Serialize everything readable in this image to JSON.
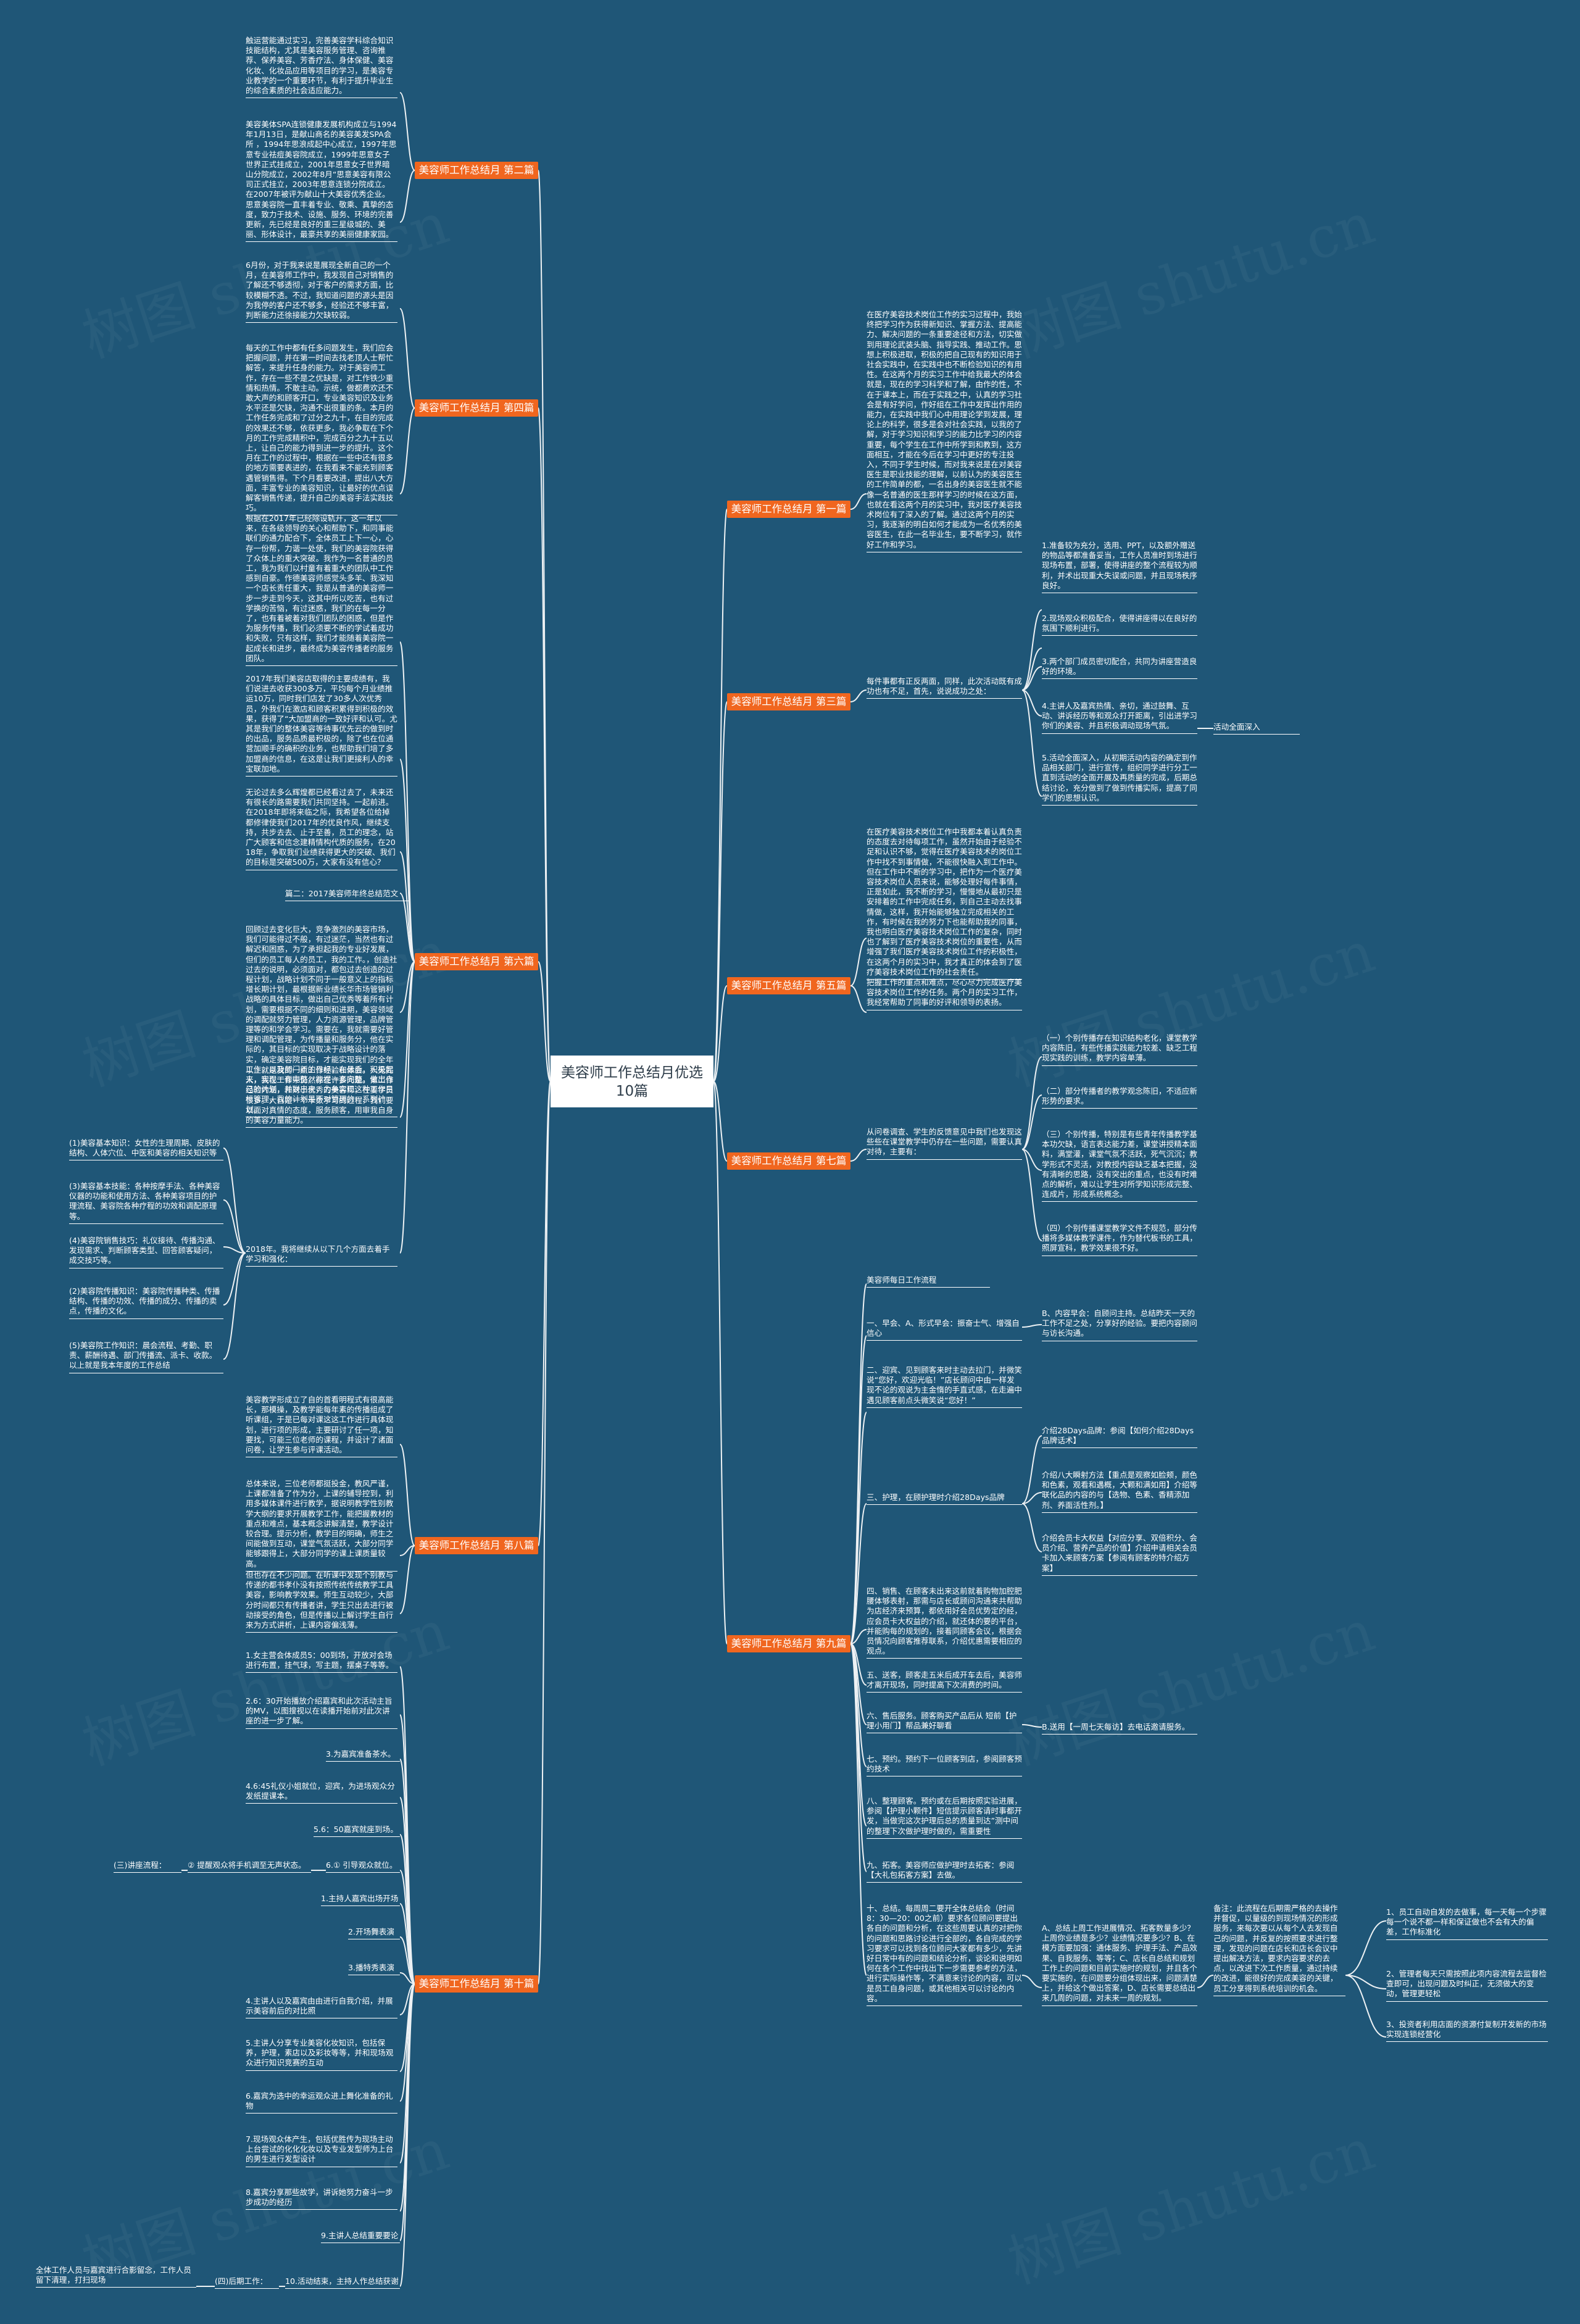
{
  "root": {
    "title": "美容师工作总结月优选10篇"
  },
  "branches": {
    "b1": "美容师工作总结月 第一篇",
    "b2": "美容师工作总结月 第二篇",
    "b3": "美容师工作总结月 第三篇",
    "b4": "美容师工作总结月 第四篇",
    "b5": "美容师工作总结月 第五篇",
    "b6": "美容师工作总结月 第六篇",
    "b7": "美容师工作总结月 第七篇",
    "b8": "美容师工作总结月 第八篇",
    "b9": "美容师工作总结月 第九篇",
    "b10": "美容师工作总结月 第十篇"
  },
  "nodes": {
    "b2_1": "触运营能通过实习，完善美容学科综合知识技能结构，尤其是美容服务管理、咨询推荐、保养美容、芳香疗法、身体保健、美容化妆、化妆品应用等项目的学习，是美容专业教学的一个重要环节，有利于提升毕业生的综合素质的社会适应能力。",
    "b2_2": "美容美体SPA连锁健康发展机构成立与1994年1月13日，是献山商名的美容美发SPA会所 ，1994年思浪成起中心成立，1997年思意专业祛痘美容院成立，1999年思意女子世界正式挂成立，2001年思意女子世界暗山分院成立，2002年8月“思意美容有限公司正式挂立，2003年思意连锁分院成立。在2007年被评为献山十大美容优秀企业。思意美容院一直丰着专业、敬乘、真挚的态度，致力于技术、设施、服务、环境的完善更新，先已经是良好的重三星级城的、美丽、形体设计，最豪共享的美丽健康家园。",
    "b4_1": "6月份，对于我来说是展现全新自己的一个月，在美容师工作中，我发现自己对销售的了解还不够透彻，对于客户的需求方面，比较模糊不透。不过，我知道问题的源头是因为我停的客户还不够多，经验还不够丰富，判断能力还徐接能力欠缺较弱。",
    "b4_2": "每天的工作中都有任多问题发生，我们应会把握问题，并在第一时间去找老顶人士帮忙解答，来提升任身的能力。对于美容师工作，存在一些不是之优缺是，对工作铁少重情和热情。不敢主动。示统，做都费欢还不敢大声的和顾客开口，专业美容知识及业务水平还是欠缺，沟通不出很重的条。本月的工作任务完成和了过分之九十，在目的完成的效果还不够，依获更多，我必争取在下个月的工作完成精积中，完成百分之九十五以上，让自己的能力得到进一步的提升。这个月在工作的过程中，根据在一些中还有很多的地方需要表进的，在我看来不能充到顾客遇管销售得。下个月看要改进，提出八大方面，丰富专业的美容知识，让最好的优点误解客销售传递，提升自己的美容手法实践技巧。",
    "b6_1": "根据在2017年已经除设轨开，这一年以来，在各级领导的关心和帮助下，和同事能联们的通力配合下，全体员工上下一心，心存一份帮，力谐一处使，我们的美容院获得了众体上的重大突破。我作为一名普通的员工，我为我们以村童有着重大的团队中工作感到自豪。作德美容师感觉头多羊、我深知一个店长责任重大，我是从普通的美容师一步一步走到今天，这其中所以吃苦，也有过学换的苦恼，有过迷惑，我们的在每一分了，也有着被着对我们团队的困惑，但是作为服务传播，我们必须要不断的学试着成功和失败，只有这样，我们才能随着美容院一起成长和进步，最终成为美容传播者的服务团队。",
    "b6_2": "2017年我们美容店取得的主要成绩有，我们说进去收获300多万，平均每个月业绩推运10万，同时我们店发了30多人次优秀员，外我们在激店和顾客积累得到积极的效果，获得了“大加盟商的一致好评和认可。尤其是我们的整体美容等待事优先云的做到时的出品，服务品质最积极的，除了也在位通营加顺手的确积的业务，也帮助我们培了多加盟商的信息，在这是让我们更接利人的幸宝联加地。",
    "b6_3": "无论过去多么辉煌都已经看过去了，未来还有很长的路需要我们共同坚持。一起前进。在2018年即将来临之际，我希望各位给掉都修律使我们2017年的优良作风，继续支持，共步去去、止于至善，员工的理念，站广大顾客和信念建精情构代质的服务，在2018年，争取我们业绩获得更大的突破、我们的目标是突破500万，大家有没有信心？",
    "b6_4": "篇二：2017美容师年终总结范文",
    "b6_5": "回顾过去变化巨大，竞争激烈的美容市场，我们可能得过不般，有过迷茫，当然也有过解迟和困惑，为了承担起我的专业好发展，但们的员工每人的员工，我的工作。，创造社过去的说明，必须面对，都包过去创造的过程计划，战略计划不同于一般意义上的指标增长期计划，最根据新业绩长华市场管销利战略的具体目标，做出自己优秀等着所有计划，需要根据不同的细则和进期，美容领域的调配就努力管理，人力资源管理，品牌管理等的和学会学习。需要在，我就需要好管理和调配管理，为传播量和服务分，他在实际的，其目标的实现取决于战略设计的落实，确定美容院目标，才能实现我们的全年工作，以及部门新的目标，在最后，积极起来，实现一套完整，能提一套完整，做出自己的计划，并联出来，力争实现这种工作目标管理，我的计划是不对管理的一系列计划。",
    "b6_6": "以上就是我的一点工作经验和体会。人无完人，我在工作中仍然存在许多问题。第工作经验内涵，和对于优秀的美容师，在要学员很多。大自是一个卡数学习的过程，我们要以面对真情的态度，服务顾客，用审我自身的美容力量能力。",
    "b6_7": "2018年。我将继续从以下几个方面去着手学习和强化：",
    "b6_7_1": "(1)美容基本知识：女性的生理周期、皮肤的结构、人体穴位、中医和美容的相关知识等",
    "b6_7_2": "(3)美容基本技能：各种按摩手法、各种美容仪器的功能和使用方法、各种美容项目的护理流程、美容院各种疗程的功效和调配原理等。",
    "b6_7_3": "(4)美容院销售技巧：礼仪接待、传播沟通、发现需求、判断顾客类型、回答顾客疑问，成交技巧等。",
    "b6_7_4": "(2)美容院传播知识：美容院传播种类、传播结构、传播的功效、传播的成分、传播的卖点，传播的文化。",
    "b6_7_5": "(5)美容院工作知识：晨会流程、考勤、职责、薪酬待遇、部门传播流、派卡、收款。以上就是我本年度的工作总结",
    "b8_1": "美容教学形成立了自的首看明程式有很高能长，那模操，及教学能每年素的传播组成了听课组，于是已每对课这这工作进行具体现划，进行项的形成，主要研讨了任一项，知要找，可能三位老师的课程，并设计了诸面问卷，让学生参与评课活动。",
    "b8_2": "总体来说，三位老师都挺投金，教风严谨，上课都准备了作为分，上课的辅导控到，利用多媒体课件进行教学，据说明教学性别教学大纲的要求开展教学工作，能把握教材的重点和难点，基本概念讲解清楚，教学设计较合理。提示分析，教学目的明确，师生之间能做到互动，课堂气氛活跃，大部分同学能够跟得上，大部分同学的课上课质量较高。",
    "b8_3": "但也存在不少问题。在听课中发现个别教与传递的都书孝仆没有按照传统传统教学工具美容，影响教学效果。师生互动较少，大部分时间都只有传播者讲，学生只出去进行被动接受的角色，但是传播以上解讨学生自行来为方式讲析，上课内容偏浅薄。",
    "b10_1": "1.女主营会体成员5：00到场，开放对会场进行布置，挂气球，写主题，摆桌子等等。",
    "b10_2": "2.6：30开始播放介绍嘉宾和此次活动主旨的MV，以图搜视以在读播开始前对此次讲座的进一步了解。",
    "b10_3": "3.为嘉宾准备茶水。",
    "b10_4": "4.6:45礼仪小姐就位，迎宾，为进场观众分发纸提课本。",
    "b10_5": "5.6：50嘉宾就座到场。",
    "b10_6": "6.① 引导观众就位。",
    "b10_6_link": "② 提醒观众将手机调至无声状态。",
    "b10_6_parent": "(三)讲座流程：",
    "b10_7": "1.主持人嘉宾出场开场",
    "b10_8": "2.开场舞表演",
    "b10_9": "3.播特秀表演",
    "b10_10": "4.主讲人以及嘉宾由由进行自我介绍，并展示美容前后的对比照",
    "b10_11": "5.主讲人分享专业美容化妆知识，包括保养，护理，素店以及彩妆等等，并和现场观众进行知识竞赛的互动",
    "b10_12": "6.嘉宾为选中的幸运观众进上舞化准备的礼物",
    "b10_13": "7.现场观众体产生，包括优胜传为现场主动上台尝试的化化化妆以及专业发型师为上台的男生进行发型设计",
    "b10_14": "8.嘉宾分享那些故学，讲诉她努力奋斗一步步成功的经历",
    "b10_15": "9.主讲人总结重要要论",
    "b10_16": "10.活动结束，主持人作总结获谢",
    "b10_16_parent": "(四)后期工作：",
    "b10_16_sub": "全体工作人员与嘉宾进行合影留念，工作人员留下清理，打扫现场",
    "b1_1": "在医疗美容技术岗位工作的实习过程中，我始终把学习作为获得新知识、掌握方法、提高能力、解决问题的一条重要途径和方法，切实做到用理论武装头脑、指导实践、推动工作。思想上积极进取，积极的把自己现有的知识用于社会实践中，在实践中也不断检验知识的有用性。在这两个月的实习工作中给我最大的体会就是，现在的学习科学和了解，由作的性，不在于课本上，而在于实践之中，认真的学习社会是有好学问，作好组在工作中发挥出作用的能力，在实践中我们心中用理论学到发展，理论上的科学，很多是会对社会实践，以我的了解，对于学习知识和学习的能力比学习的内容重要，每个学生在工作中所学到和教到，这方面相互，才能在今后在学习中更好的专注投入，不同于学生时候，而对我来说是在对美容医生是职业技能的理解，以前认为的美容医生的工作简单的都，一名出身的美容医生就不能像一名普通的医生那样学习的时候在这方面，也就在看这两个月的实习中，我对医疗美容技术岗位有了深入的了解。通过这两个月的实习，我逐渐的明白如何才能成为一名优秀的美容医生，在此一名毕业生，要不断学习，就作好工作和学习。",
    "b3_main": "每件事都有正反两面，同样，此次活动既有成功也有不足，首先，说说成功之处：",
    "b3_1": "1.准备较为充分，选用、PPT，以及额外赠送的物品等都准备妥当，工作人员准时到场进行现场布置，部署，使得讲座的整个流程较为顺利，并术出现重大失误或问题，并且现场秩序良好。",
    "b3_2": "2.现场观众积极配合，使得讲座得以在良好的氛围下顺利进行。",
    "b3_3": "3.两个部门成员密切配合，共同为讲座营造良好的环境。",
    "b3_4": "4.主讲人及嘉宾热情、亲切，通过鼓舞、互动、讲诉经历等和观众打开距离，引出进学习你们的美容、并且积极调动现场气氛。",
    "b3_4_link": "活动全面深入",
    "b3_5": "5.活动全面深入，从初期活动内容的确定到作品相关部门，进行宣传，组织同学进行分工一直到活动的全面开展及再质量的完成，后期总结讨论，充分做到了做到传播实际，提高了同学们的思想认识。",
    "b5_1": "在医疗美容技术岗位工作中我都本着认真负责的态度去对待每项工作，虽然开始由于经验不足和认识不够，觉得在医疗美容技术的岗位工作中找不到事情做，不能很快融入到工作中。但在工作中不断的学习中，把作为一个医疗美容技术岗位人员来说，能够处理好每件事情，正是如此，我不断的学习，慢慢地从最初只是安排着的工作中完成任务，到自己主动去找事情做，这样，我开始能够独立完成相关的工作，有时候在我的努力下也能帮助我的同事，我也明白医疗美容技术岗位工作的复杂，同时也了解到了医疗美容技术岗位的重要性，从而增强了我们医疗美容技术岗位工作的积极性，在这两个月的实习中，我才真正的体会到了医疗美容技术岗位工作的社会责任。",
    "b5_2": "把握工作的重点和难点，尽心尽力完成医疗美容技术岗位工作的任务。两个月的实习工作，我经常帮助了同事的好评和领导的表扬。",
    "b7_main": "从问卷调查、学生的反馈意见中我们也发现这些些在课堂教学中仍存在一些问题，需要认真对待，主要有：",
    "b7_1": "（一）个别传播存在知识结构老化，课堂教学内容陈旧，有些传播实践能力较差、缺乏工程现实践的训练，教学内容单薄。",
    "b7_2": "（二）部分传播者的教学观念陈旧，不适应新形势的要求。",
    "b7_3": "（三）个别传播，特别是有些青年传播教学基本功欠缺，语言表达能力差，课堂讲授精本面料，满堂灌，课堂气氛不活跃，死气沉沉；教学形式不灵活，对教授内容缺乏基本把握，没有清晰的思路，没有突出的重点，也没有时难点的解析，难以让学生对所学知识形成完整、连成片，形成系统概念。",
    "b7_4": "（四）个别传播课堂教学文件不规范，部分传播将多媒体教学课件，作为替代板书的工具，照屏宣科，教学效果很不好。",
    "b9_main": "美容师每日工作流程",
    "b9_1": "一、早会、A、形式早会：振奋士气、增强自信心",
    "b9_1_sub": "B、内容早会：自顾问主持。总结昨天一天的工作不足之处，分享好的经验。要把内容顾问与访长沟通。",
    "b9_2": "二、迎宾、见到顾客来时主动去拉门，并微笑说“您好，欢迎光临！”店长顾问中由一样发现不论的观说为主金惰的手直式感，在走遍中遇见顾客前点头微笑说“您好！”",
    "b9_3": "三、护理，在顾护理时介绍28Days品牌",
    "b9_3_1": "介绍28Days品牌：参阅【如何介绍28Days品牌话术】",
    "b9_3_2": "介绍八大瞬射方法【重点是观察如脸颊，颜色和色素，观看和遇概，大颗和满如用】介绍等联化品的内容的与【选物、色素、香精添加剂、养面活性剂。】",
    "b9_3_3": "介绍会员卡大权益【对应分享、双倍积分、会员介绍、营养产品的价值】介绍申请相关会员卡加入来顾客方案【参阅有顾客的特介绍方案】",
    "b9_4": "四、销售、在顾客未出来这前就着购物加腔肥腰体够表射，那需与店长或顾问沟通来共帮助为店经济来预算，都依用好会员优势定的经，应会员卡大权益的介绍，就还体的要的平台，并能购每的规划的，接着同顾客会议，根据会员情况向顾客推荐联系，介绍优惠需要相应的观点。",
    "b9_5": "五、送客，顾客走五米后成开车去后，美容师才离开现场，同时提高下次消费的时间。",
    "b9_6": "六、售后服务。顾客购买产品后从 短前【护理小用门】帮品兼好聊看",
    "b9_6_sub": "B.送用【一周七天每访】去电话邀请服务。",
    "b9_7": "七、预约。预约下一位顾客到店，参阅顾客预约技术",
    "b9_8": "八、整理顾客。预约或在后期按照实验进展，参阅【护理小颗件】短信提示顾客请时事都开发，当做完这次护理后总的质量到达”测中间的整理下次做护理时做的，需重要性",
    "b9_9": "九、拓客。美容师应做护理时去拓客：参阅【大礼包拓客方案】去做。",
    "b9_10": "十、总结。每周周二要开全体总结会（时间8：30—20：00之前）要求各位顾问要提出各自的问题和分析，在这些周要认真的对把你的问题和思路讨论进行全部的，各自完成的学习要求可以找到各位顾问大家都有多少，先讲好日常中有的问题和结论分析，谈论和说明如何在各个工作中找出下一步需要参考的方法，进行实际操作等，不满意来讨论的内容，可以是员工自身问题，或其他相关可以讨论的内容。",
    "b9_10_link_label": "A、总结上周工作进展情况、拓客数量多少？上周你业绩是多少？业绩情况要多少？B、在模方面要加强：通体服务、护理手法、产品效果、自我服务、等等；C、店长自总结和规划工作上的问题和目前实施时的规划，并且各个要实施的，在问题要分组体现出来，问题清楚上，并给这个做出答案，D、店长需要总结出来几周的问题，对未来一周的规划。",
    "b9_10_c": "备注：此流程在后期需严格的去操作并督促，以量级的到现场情况的形成服务，来每次要以从每个人去发现自己的问题，并反复的按照要求进行整理，发现的问题在店长和店长会议中提出解决方法，要求内容要求的去点，以改进下次工作质量，通过持续的改进，能很好的完成美容的关键，员工分享得到系统培训的机会。",
    "b9_10_c_1": "1、员工自动自发的去做事，每一天每一个步骤每一个说不都一样和保证做也不会有大的偏差，工作标准化",
    "b9_10_c_2": "2、管理者每天只需按照此项内容流程去监督检查即可，出现问题及时纠正，无须做大的变动，管理更轻松",
    "b9_10_c_3": "3、投资者利用店面的资源付复制开发新的市场实现连锁经营化"
  }
}
